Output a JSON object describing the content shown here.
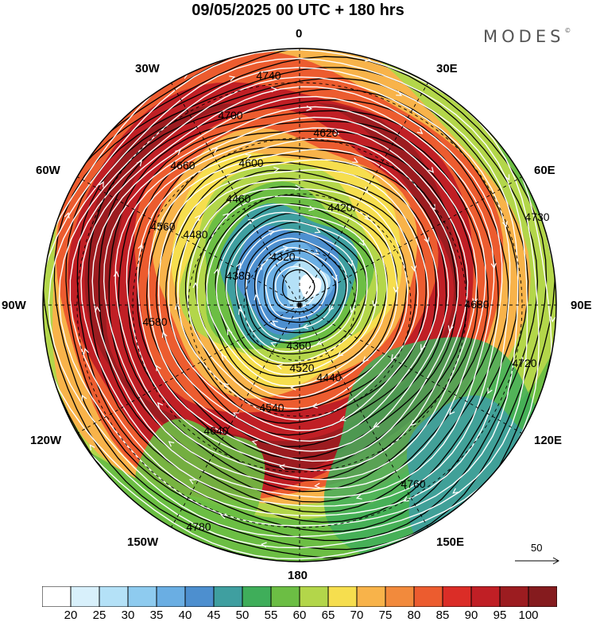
{
  "title": "09/05/2025  00 UTC  + 180 hrs",
  "brand": {
    "name": "MODES",
    "mark": "©"
  },
  "longitude_labels": [
    {
      "key": "n",
      "text": "0"
    },
    {
      "key": "w30",
      "text": "30W"
    },
    {
      "key": "e30",
      "text": "30E"
    },
    {
      "key": "w60",
      "text": "60W"
    },
    {
      "key": "e60",
      "text": "60E"
    },
    {
      "key": "w90",
      "text": "90W"
    },
    {
      "key": "e90",
      "text": "90E"
    },
    {
      "key": "w120",
      "text": "120W"
    },
    {
      "key": "e120",
      "text": "120E"
    },
    {
      "key": "w150",
      "text": "150W"
    },
    {
      "key": "e150",
      "text": "150E"
    },
    {
      "key": "s",
      "text": "180"
    }
  ],
  "reference_vector": {
    "value": "50"
  },
  "contour_labels": [
    "4740",
    "4700",
    "4620",
    "4600",
    "4660",
    "4560",
    "4520",
    "4480",
    "4460",
    "4420",
    "4380",
    "4360",
    "4320",
    "4440",
    "4540",
    "4640",
    "4680",
    "4720",
    "4760",
    "4780",
    "4730",
    "4580"
  ],
  "colorbar": {
    "labels": [
      "20",
      "25",
      "30",
      "35",
      "40",
      "45",
      "50",
      "55",
      "60",
      "65",
      "70",
      "75",
      "80",
      "85",
      "90",
      "95",
      "100"
    ],
    "colors": [
      "#ffffff",
      "#d8f0fb",
      "#b4e1f7",
      "#8ecbef",
      "#6aaee3",
      "#4d8fcf",
      "#3f9fa0",
      "#3fae5a",
      "#6cbe44",
      "#b3d64a",
      "#f6de4e",
      "#f8b34a",
      "#f28a3c",
      "#ec5c2f",
      "#db2d27",
      "#c01f25",
      "#9c1c20",
      "#851b1e"
    ]
  }
}
